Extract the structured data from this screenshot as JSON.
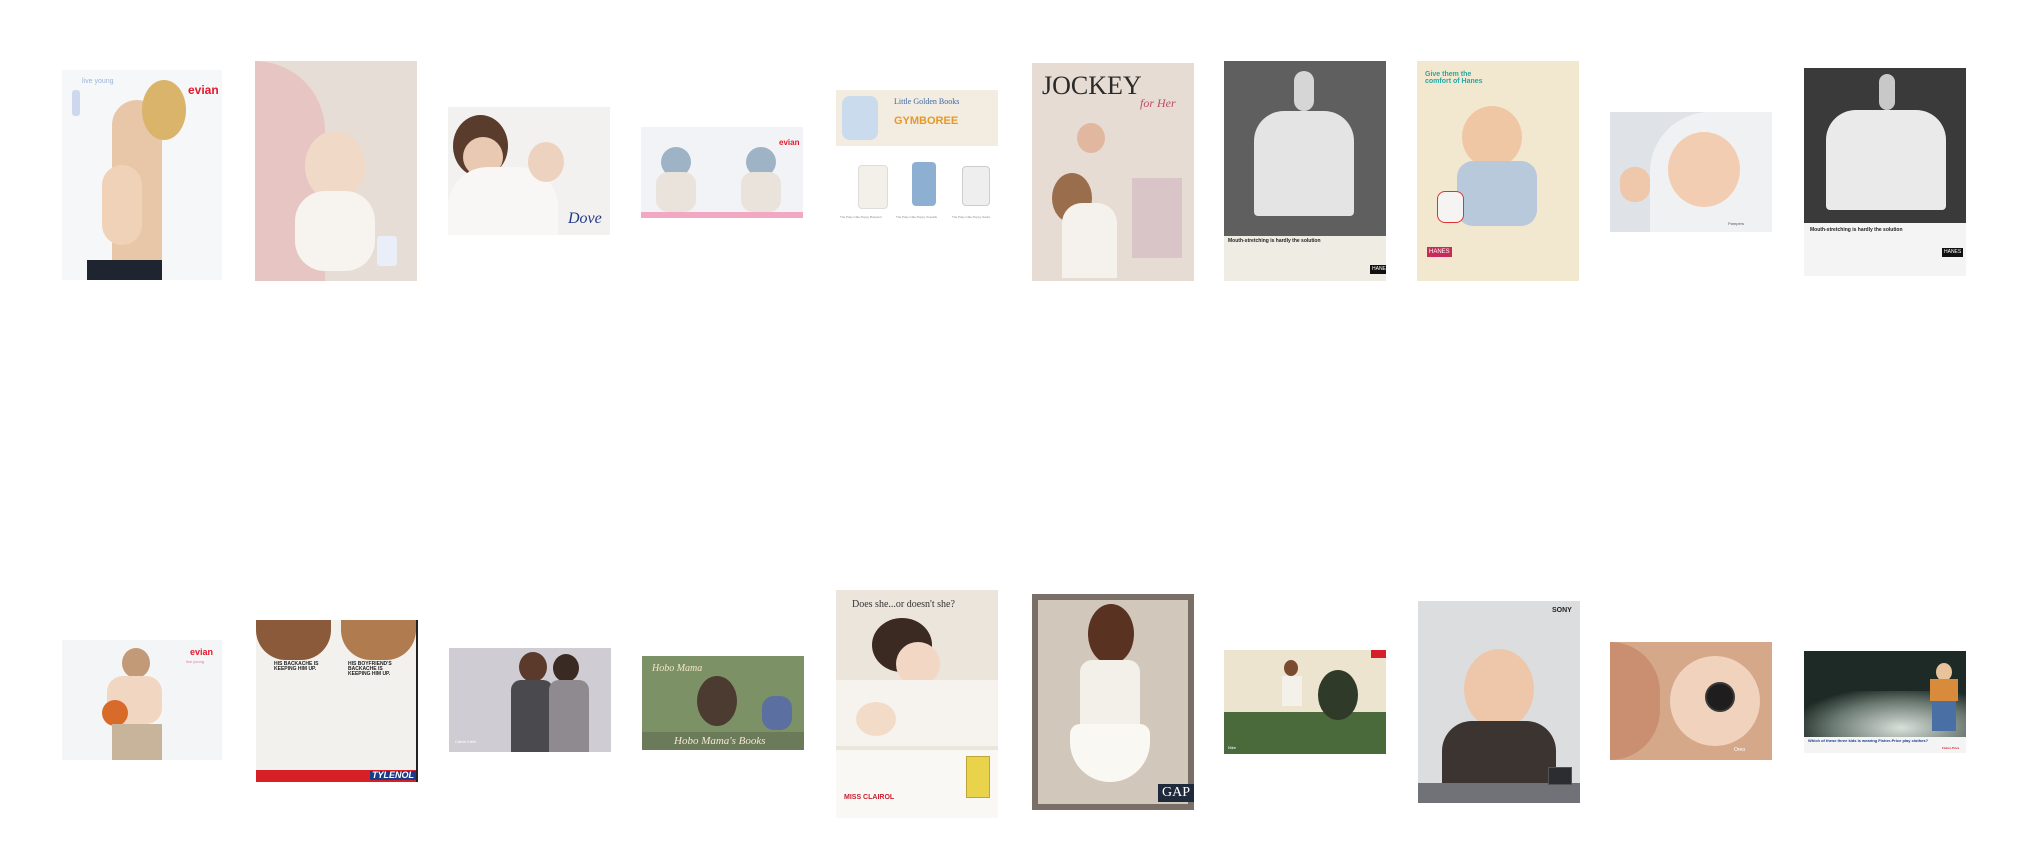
{
  "gallery": {
    "row1": [
      {
        "brand": "evian",
        "caption": "live young"
      },
      {
        "brand": "",
        "caption": ""
      },
      {
        "brand": "Dove"
      },
      {
        "brand": "evian"
      },
      {
        "headline": "Little Golden Books",
        "brand": "GYMBOREE",
        "captions": [
          "The Poky Little Puppy Bodysuit",
          "The Poky Little Puppy Overalls",
          "The Poky Little Puppy Socks"
        ]
      },
      {
        "brand": "JOCKEY",
        "tagline": "for Her"
      },
      {
        "brand": "HANES",
        "headline": "Mouth-stretching is hardly the solution"
      },
      {
        "headline": "Give them the comfort of Hanes",
        "brand": "HANES"
      },
      {
        "brand": "Pampers"
      },
      {
        "brand": "HANES",
        "headline": "Mouth-stretching is hardly the solution"
      }
    ],
    "row2": [
      {
        "brand": "evian",
        "caption": "live young"
      },
      {
        "text_left": "HIS BACKACHE IS KEEPING HIM UP.",
        "text_right": "HIS BOYFRIEND'S BACKACHE IS KEEPING HIM UP.",
        "brand": "TYLENOL"
      },
      {
        "brand": "Calvin Klein"
      },
      {
        "headline": "Hobo Mama's Books",
        "title": "Hobo Mama"
      },
      {
        "headline": "Does she...or doesn't she?",
        "brand": "MISS CLAIROL"
      },
      {
        "brand": "GAP"
      },
      {
        "brand": "Nike"
      },
      {
        "brand": "SONY"
      },
      {
        "brand": "Oreo"
      },
      {
        "headline": "Which of these three kids is wearing Fisher-Price play clothes?",
        "brand": "Fisher-Price"
      }
    ]
  }
}
